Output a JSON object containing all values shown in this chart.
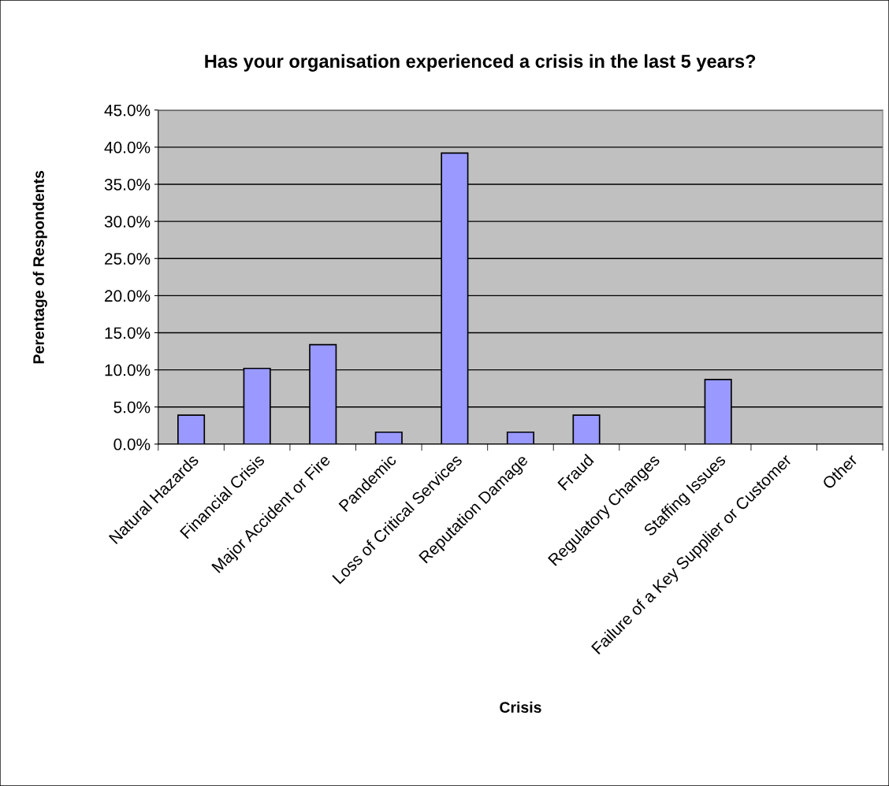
{
  "chart_data": {
    "type": "bar",
    "title": "Has your organisation experienced a crisis in the last 5 years?",
    "xlabel": "Crisis",
    "ylabel": "Perentage of Respondents",
    "categories": [
      "Natural Hazards",
      "Financial Crisis",
      "Major Accident or Fire",
      "Pandemic",
      "Loss of Critical Services",
      "Reputation Damage",
      "Fraud",
      "Regulatory Changes",
      "Staffing Issues",
      "Failure of a Key Supplier or Customer",
      "Other"
    ],
    "values": [
      3.9,
      10.2,
      13.4,
      1.6,
      39.2,
      1.6,
      3.9,
      0,
      8.7,
      0,
      0
    ],
    "color": "#9999ff",
    "ylim": [
      0,
      45
    ],
    "yticks": [
      {
        "value": 0,
        "label": "0.0%"
      },
      {
        "value": 5,
        "label": "5.0%"
      },
      {
        "value": 10,
        "label": "10.0%"
      },
      {
        "value": 15,
        "label": "15.0%"
      },
      {
        "value": 20,
        "label": "20.0%"
      },
      {
        "value": 25,
        "label": "25.0%"
      },
      {
        "value": 30,
        "label": "30.0%"
      },
      {
        "value": 35,
        "label": "35.0%"
      },
      {
        "value": 40,
        "label": "40.0%"
      },
      {
        "value": 45,
        "label": "45.0%"
      }
    ],
    "grid": "y",
    "legend": false
  }
}
